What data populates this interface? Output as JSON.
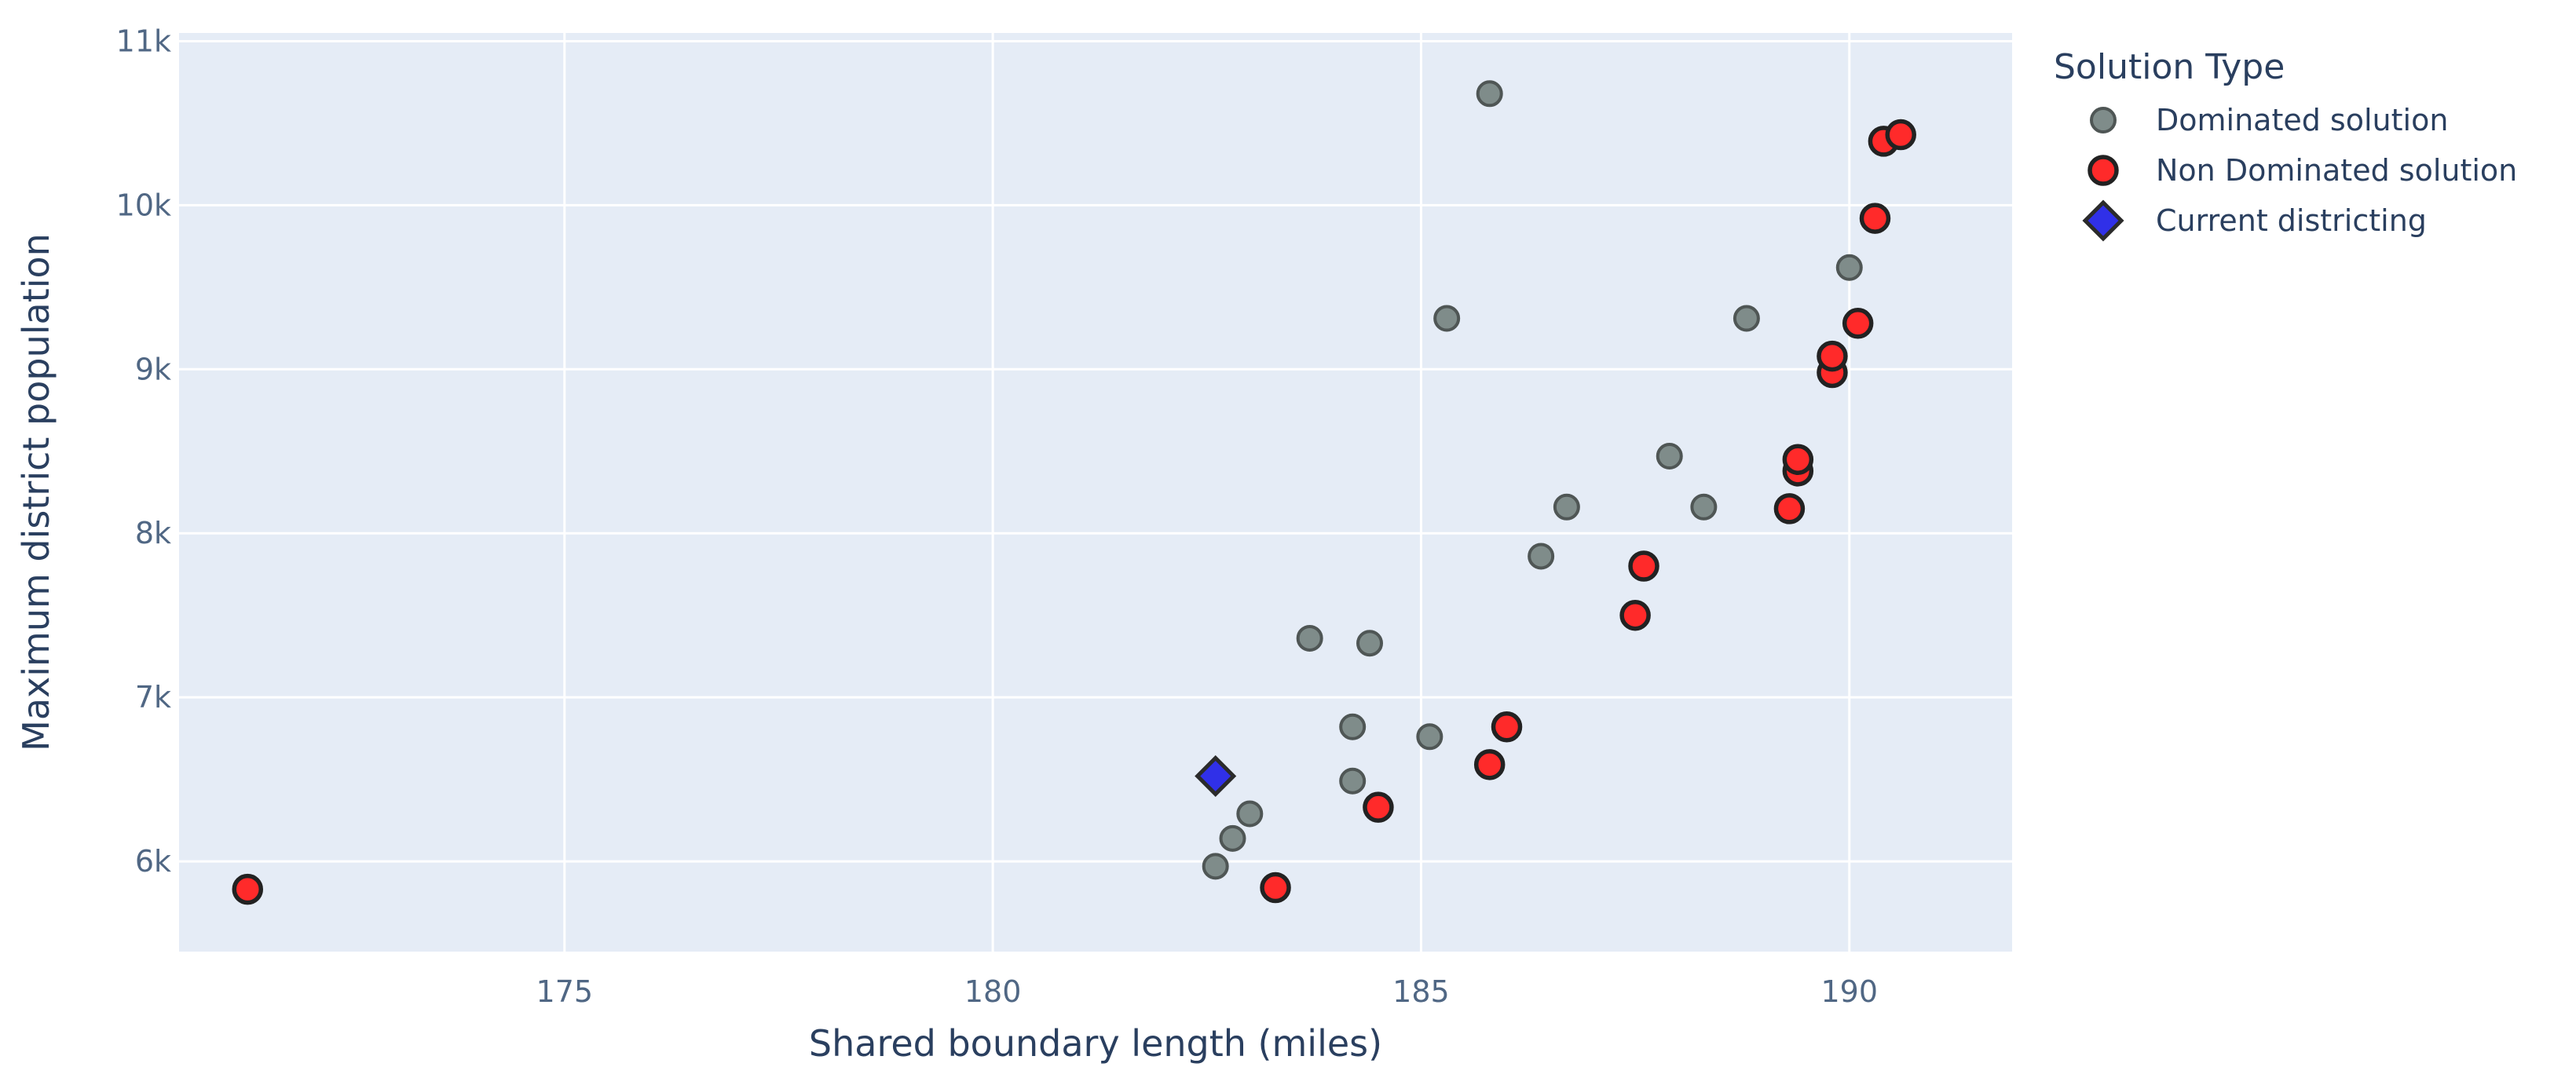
{
  "chart_data": {
    "type": "scatter",
    "xlabel": "Shared boundary length (miles)",
    "ylabel": "Maximum district population",
    "xlim": [
      170.5,
      191.9
    ],
    "ylim": [
      5450,
      11050
    ],
    "x_ticks": [
      175,
      180,
      185,
      190
    ],
    "x_tick_labels": [
      "175",
      "180",
      "185",
      "190"
    ],
    "y_ticks": [
      6000,
      7000,
      8000,
      9000,
      10000,
      11000
    ],
    "y_tick_labels": [
      "6k",
      "7k",
      "8k",
      "9k",
      "10k",
      "11k"
    ],
    "grid": true,
    "plot_background": "#e5ecf6",
    "grid_color": "#ffffff",
    "legend": {
      "title": "Solution Type",
      "placement": "right"
    },
    "series": [
      {
        "name": "Dominated solution",
        "marker": "circle",
        "color": "#7f8c8a",
        "points": [
          {
            "x": 182.6,
            "y": 5970
          },
          {
            "x": 182.8,
            "y": 6140
          },
          {
            "x": 183.0,
            "y": 6290
          },
          {
            "x": 183.7,
            "y": 7360
          },
          {
            "x": 184.2,
            "y": 6820
          },
          {
            "x": 184.2,
            "y": 6490
          },
          {
            "x": 184.4,
            "y": 7330
          },
          {
            "x": 185.1,
            "y": 6760
          },
          {
            "x": 185.3,
            "y": 9310
          },
          {
            "x": 185.8,
            "y": 10680
          },
          {
            "x": 186.4,
            "y": 7860
          },
          {
            "x": 186.7,
            "y": 8160
          },
          {
            "x": 187.9,
            "y": 8470
          },
          {
            "x": 188.3,
            "y": 8160
          },
          {
            "x": 188.8,
            "y": 9310
          },
          {
            "x": 190.0,
            "y": 9620
          }
        ]
      },
      {
        "name": "Non Dominated solution",
        "marker": "circle",
        "color": "#ff2a2a",
        "points": [
          {
            "x": 171.3,
            "y": 5830
          },
          {
            "x": 183.3,
            "y": 5840
          },
          {
            "x": 184.5,
            "y": 6330
          },
          {
            "x": 185.8,
            "y": 6590
          },
          {
            "x": 186.0,
            "y": 6820
          },
          {
            "x": 187.5,
            "y": 7500
          },
          {
            "x": 187.6,
            "y": 7800
          },
          {
            "x": 189.3,
            "y": 8150
          },
          {
            "x": 189.4,
            "y": 8380
          },
          {
            "x": 189.4,
            "y": 8450
          },
          {
            "x": 189.8,
            "y": 8980
          },
          {
            "x": 189.8,
            "y": 9080
          },
          {
            "x": 190.1,
            "y": 9280
          },
          {
            "x": 190.3,
            "y": 9920
          },
          {
            "x": 190.4,
            "y": 10390
          },
          {
            "x": 190.6,
            "y": 10430
          }
        ]
      },
      {
        "name": "Current districting",
        "marker": "diamond",
        "color": "#3030e8",
        "points": [
          {
            "x": 182.6,
            "y": 6520
          }
        ]
      }
    ]
  }
}
